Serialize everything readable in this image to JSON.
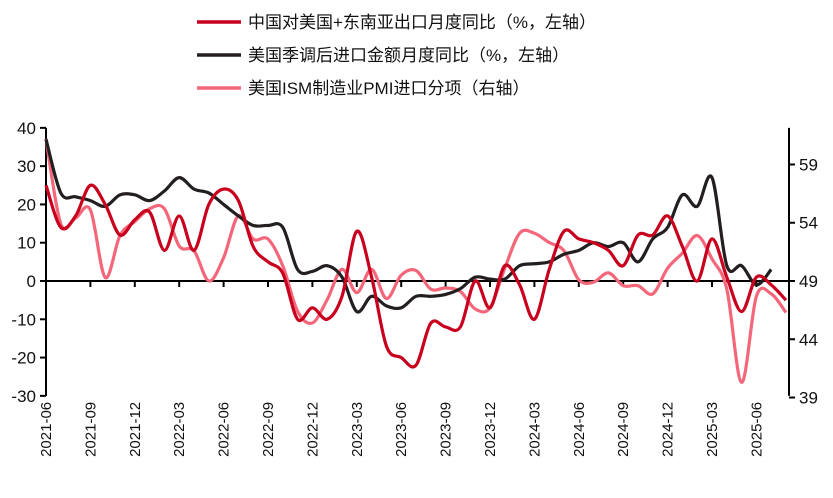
{
  "chart_data": {
    "type": "line",
    "title": "",
    "x": [
      "2021-06",
      "2021-07",
      "2021-08",
      "2021-09",
      "2021-10",
      "2021-11",
      "2021-12",
      "2022-01",
      "2022-02",
      "2022-03",
      "2022-04",
      "2022-05",
      "2022-06",
      "2022-07",
      "2022-08",
      "2022-09",
      "2022-10",
      "2022-11",
      "2022-12",
      "2023-01",
      "2023-02",
      "2023-03",
      "2023-04",
      "2023-05",
      "2023-06",
      "2023-07",
      "2023-08",
      "2023-09",
      "2023-10",
      "2023-11",
      "2023-12",
      "2024-01",
      "2024-02",
      "2024-03",
      "2024-04",
      "2024-05",
      "2024-06",
      "2024-07",
      "2024-08",
      "2024-09",
      "2024-10",
      "2024-11",
      "2024-12",
      "2025-01",
      "2025-02",
      "2025-03",
      "2025-04",
      "2025-05",
      "2025-06",
      "2025-07",
      "2025-08"
    ],
    "xtick_labels": [
      "2021-06",
      "2021-09",
      "2021-12",
      "2022-03",
      "2022-06",
      "2022-09",
      "2022-12",
      "2023-03",
      "2023-06",
      "2023-09",
      "2023-12",
      "2024-03",
      "2024-06",
      "2024-09",
      "2024-12",
      "2025-03",
      "2025-06"
    ],
    "ylim_left": [
      -30,
      40
    ],
    "yticks_left": [
      "40",
      "30",
      "20",
      "10",
      "0",
      "-10",
      "-20",
      "-30"
    ],
    "ylim_right": [
      39,
      62
    ],
    "yticks_right": [
      "59",
      "54",
      "49",
      "44",
      "39"
    ],
    "legend_position": "top",
    "series": [
      {
        "name": "中国对美国+东南亚出口月度同比（%，左轴）",
        "axis": "left",
        "color": "#c8001e",
        "values": [
          25,
          14,
          17,
          25,
          20,
          12,
          16,
          18,
          8,
          17,
          8,
          20,
          24,
          21,
          9,
          5,
          2,
          -10,
          -7,
          -10,
          -4,
          13,
          1,
          -17,
          -20,
          -22,
          -11,
          -12,
          -12,
          0,
          -7,
          4,
          -1,
          -10,
          3,
          13,
          11,
          10,
          8,
          4,
          12,
          12,
          17,
          9,
          0,
          11,
          1,
          -8,
          1,
          -1,
          -5
        ]
      },
      {
        "name": "美国季调后进口金额月度同比（%，左轴）",
        "axis": "left",
        "color": "#231f20",
        "values": [
          37,
          23,
          22,
          21,
          19.5,
          22.5,
          22.5,
          21,
          23.5,
          27,
          24,
          23,
          20,
          17,
          14.5,
          14.5,
          14,
          3,
          2.5,
          4,
          1,
          -8,
          -4,
          -6.5,
          -7,
          -4,
          -4,
          -3.5,
          -2,
          1,
          0.5,
          0.5,
          4,
          4.5,
          5,
          7,
          8,
          10,
          9,
          10,
          5,
          11,
          14,
          22.5,
          19.5,
          27,
          4,
          4,
          -1,
          3,
          null
        ]
      },
      {
        "name": "美国ISM制造业PMI进口分项（右轴）",
        "axis": "right",
        "color": "#f4677a",
        "values": [
          61.2,
          53.9,
          54.4,
          55.1,
          49.3,
          52.9,
          54.1,
          55.2,
          55.2,
          52,
          51.6,
          49,
          51,
          54.6,
          52.6,
          52.6,
          50.3,
          46.4,
          45.4,
          47.4,
          50,
          48,
          50,
          47.5,
          49.5,
          49.9,
          48.3,
          48.4,
          48.1,
          46.6,
          46.7,
          50.1,
          53.1,
          53.1,
          52.3,
          51.6,
          49.1,
          48.9,
          49.7,
          48.6,
          48.6,
          47.9,
          50.1,
          51.4,
          52.9,
          50.9,
          48.3,
          40.3,
          47.7,
          47.9,
          46.3
        ]
      }
    ]
  }
}
